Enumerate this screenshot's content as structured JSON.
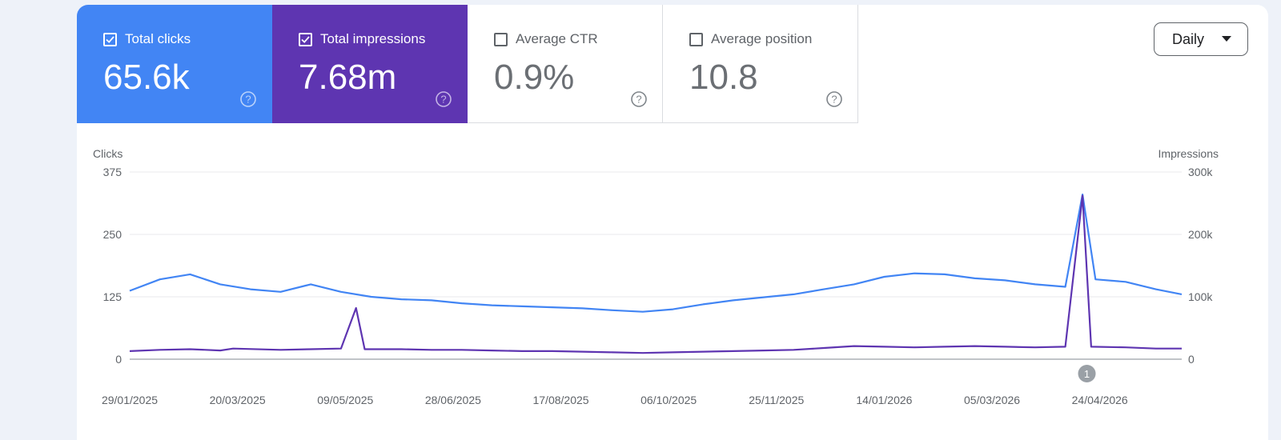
{
  "metrics": [
    {
      "label": "Total clicks",
      "value": "65.6k",
      "checked": true,
      "color": "#4285f4"
    },
    {
      "label": "Total impressions",
      "value": "7.68m",
      "checked": true,
      "color": "#5e35b1"
    },
    {
      "label": "Average CTR",
      "value": "0.9%",
      "checked": false
    },
    {
      "label": "Average position",
      "value": "10.8",
      "checked": false
    }
  ],
  "granularity": {
    "label": "Daily"
  },
  "chart_data": {
    "type": "line",
    "left_axis_label": "Clicks",
    "right_axis_label": "Impressions",
    "left_ticks": [
      "0",
      "125",
      "250",
      "375"
    ],
    "left_tick_values": [
      0,
      125,
      250,
      375
    ],
    "right_ticks": [
      "0",
      "100k",
      "200k",
      "300k"
    ],
    "right_tick_values": [
      0,
      100000,
      200000,
      300000
    ],
    "ylim_left": [
      0,
      375
    ],
    "ylim_right": [
      0,
      300000
    ],
    "x_start": "2025-01-29",
    "x_end": "2026-06-01",
    "x_tick_labels": [
      "29/01/2025",
      "20/03/2025",
      "09/05/2025",
      "28/06/2025",
      "17/08/2025",
      "06/10/2025",
      "25/11/2025",
      "14/01/2026",
      "05/03/2026",
      "24/04/2026"
    ],
    "x_tick_dates": [
      "2025-01-29",
      "2025-03-20",
      "2025-05-09",
      "2025-06-28",
      "2025-08-17",
      "2025-10-06",
      "2025-11-25",
      "2026-01-14",
      "2026-03-05",
      "2026-04-24"
    ],
    "annotation": {
      "label": "1",
      "date": "2026-04-18"
    },
    "grid": true,
    "series": [
      {
        "name": "Clicks",
        "axis": "left",
        "color": "#4285f4",
        "points": [
          [
            "2025-01-29",
            137
          ],
          [
            "2025-02-12",
            160
          ],
          [
            "2025-02-26",
            170
          ],
          [
            "2025-03-12",
            150
          ],
          [
            "2025-03-26",
            140
          ],
          [
            "2025-04-09",
            135
          ],
          [
            "2025-04-23",
            150
          ],
          [
            "2025-05-07",
            135
          ],
          [
            "2025-05-21",
            125
          ],
          [
            "2025-06-04",
            120
          ],
          [
            "2025-06-18",
            118
          ],
          [
            "2025-07-02",
            112
          ],
          [
            "2025-07-16",
            108
          ],
          [
            "2025-07-30",
            106
          ],
          [
            "2025-08-13",
            104
          ],
          [
            "2025-08-27",
            102
          ],
          [
            "2025-09-10",
            98
          ],
          [
            "2025-09-24",
            95
          ],
          [
            "2025-10-08",
            100
          ],
          [
            "2025-10-22",
            110
          ],
          [
            "2025-11-05",
            118
          ],
          [
            "2025-11-19",
            124
          ],
          [
            "2025-12-03",
            130
          ],
          [
            "2025-12-17",
            140
          ],
          [
            "2025-12-31",
            150
          ],
          [
            "2026-01-14",
            165
          ],
          [
            "2026-01-28",
            172
          ],
          [
            "2026-02-11",
            170
          ],
          [
            "2026-02-25",
            162
          ],
          [
            "2026-03-11",
            158
          ],
          [
            "2026-03-25",
            150
          ],
          [
            "2026-04-08",
            145
          ],
          [
            "2026-04-16",
            330
          ],
          [
            "2026-04-22",
            160
          ],
          [
            "2026-05-06",
            155
          ],
          [
            "2026-05-20",
            140
          ],
          [
            "2026-06-01",
            130
          ]
        ]
      },
      {
        "name": "Impressions",
        "axis": "right",
        "color": "#5e35b1",
        "points": [
          [
            "2025-01-29",
            13000
          ],
          [
            "2025-02-12",
            15000
          ],
          [
            "2025-02-26",
            16000
          ],
          [
            "2025-03-12",
            14000
          ],
          [
            "2025-03-18",
            17000
          ],
          [
            "2025-04-09",
            15000
          ],
          [
            "2025-04-23",
            16000
          ],
          [
            "2025-05-07",
            17000
          ],
          [
            "2025-05-14",
            82000
          ],
          [
            "2025-05-18",
            16000
          ],
          [
            "2025-06-04",
            16000
          ],
          [
            "2025-06-18",
            15000
          ],
          [
            "2025-07-02",
            15000
          ],
          [
            "2025-07-16",
            14000
          ],
          [
            "2025-07-30",
            13000
          ],
          [
            "2025-08-13",
            13000
          ],
          [
            "2025-08-27",
            12000
          ],
          [
            "2025-09-10",
            11000
          ],
          [
            "2025-09-24",
            10000
          ],
          [
            "2025-10-08",
            11000
          ],
          [
            "2025-10-22",
            12000
          ],
          [
            "2025-11-05",
            13000
          ],
          [
            "2025-11-19",
            14000
          ],
          [
            "2025-12-03",
            15000
          ],
          [
            "2025-12-17",
            18000
          ],
          [
            "2025-12-31",
            21000
          ],
          [
            "2026-01-14",
            20000
          ],
          [
            "2026-01-28",
            19000
          ],
          [
            "2026-02-11",
            20000
          ],
          [
            "2026-02-25",
            21000
          ],
          [
            "2026-03-11",
            20000
          ],
          [
            "2026-03-25",
            19000
          ],
          [
            "2026-04-08",
            20000
          ],
          [
            "2026-04-16",
            262000
          ],
          [
            "2026-04-20",
            20000
          ],
          [
            "2026-05-06",
            19000
          ],
          [
            "2026-05-20",
            17000
          ],
          [
            "2026-06-01",
            17000
          ]
        ]
      }
    ]
  }
}
